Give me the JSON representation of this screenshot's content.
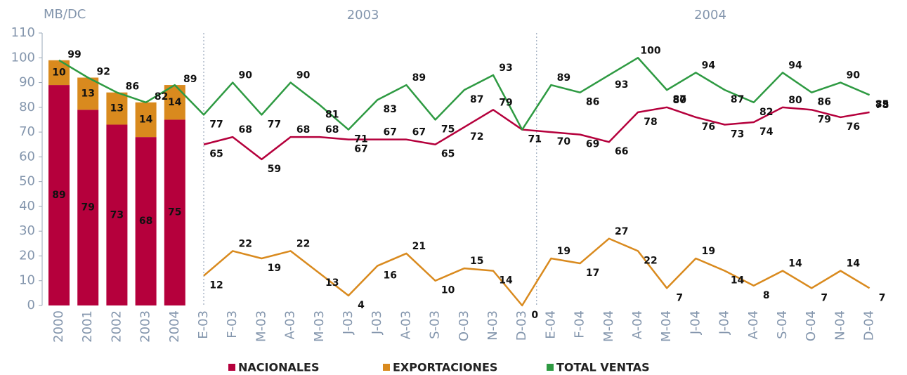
{
  "chart_data": {
    "type": "combo",
    "y_label": "MB/DC",
    "groups": [
      "2003",
      "2004"
    ],
    "bar_categories": [
      "2000",
      "2001",
      "2002",
      "2003",
      "2004"
    ],
    "categories": [
      "E-03",
      "F-03",
      "M-03",
      "A-03",
      "M-03",
      "J-03",
      "J-03",
      "A-03",
      "S-03",
      "O-03",
      "N-03",
      "D-03",
      "E-04",
      "F-04",
      "M-04",
      "A-04",
      "M-04",
      "J-04",
      "J-04",
      "A-04",
      "S-04",
      "O-04",
      "N-04",
      "D-04"
    ],
    "ylim": [
      0,
      110
    ],
    "yticks": [
      0,
      10,
      20,
      30,
      40,
      50,
      60,
      70,
      80,
      90,
      100,
      110
    ],
    "series": [
      {
        "name": "NACIONALES",
        "color": "#b5003c",
        "bar_mark": "bar",
        "bar_values": [
          89,
          79,
          73,
          68,
          75
        ],
        "values": [
          65,
          68,
          59,
          68,
          68,
          67,
          67,
          67,
          65,
          72,
          79,
          71,
          70,
          69,
          66,
          78,
          80,
          76,
          73,
          74,
          80,
          79,
          76,
          78
        ]
      },
      {
        "name": "EXPORTACIONES",
        "color": "#d98a1e",
        "bar_mark": "bar",
        "bar_values": [
          10,
          13,
          13,
          14,
          14
        ],
        "values": [
          12,
          22,
          19,
          22,
          13,
          4,
          16,
          21,
          10,
          15,
          14,
          0,
          19,
          17,
          27,
          22,
          7,
          19,
          14,
          8,
          14,
          7,
          14,
          7
        ]
      },
      {
        "name": "TOTAL VENTAS",
        "color": "#2e9a42",
        "bar_mark": "line",
        "bar_values": [
          99,
          92,
          86,
          82,
          89
        ],
        "values": [
          77,
          90,
          77,
          90,
          81,
          71,
          83,
          89,
          75,
          87,
          93,
          71,
          89,
          86,
          93,
          100,
          87,
          94,
          87,
          82,
          94,
          86,
          90,
          85
        ]
      }
    ]
  }
}
